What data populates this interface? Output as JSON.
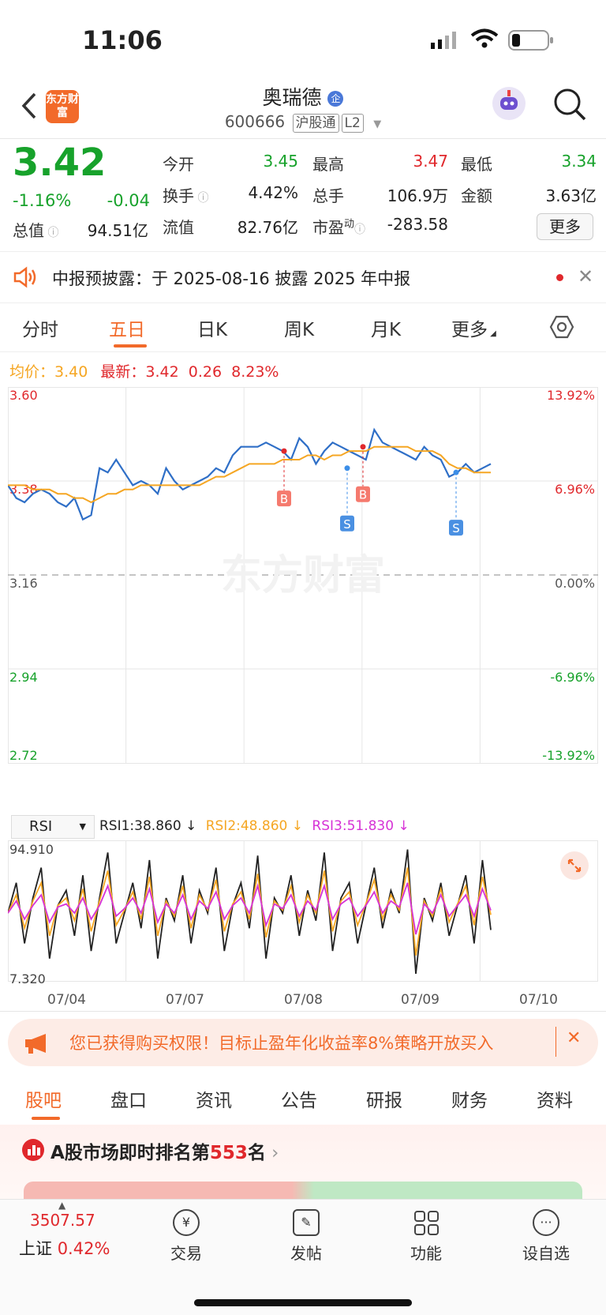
{
  "status_bar": {
    "time": "11:06"
  },
  "nav": {
    "logo_text": "东方财富",
    "stock_name": "奥瑞德",
    "badge": "企",
    "stock_code": "600666",
    "tag1": "沪股通",
    "tag2": "L2"
  },
  "quote": {
    "price": "3.42",
    "change_pct": "-1.16%",
    "change": "-0.04",
    "open_label": "今开",
    "open": "3.45",
    "high_label": "最高",
    "high": "3.47",
    "low_label": "最低",
    "low": "3.34",
    "turnover_label": "换手",
    "turnover": "4.42%",
    "volume_label": "总手",
    "volume": "106.9万",
    "amount_label": "金额",
    "amount": "3.63亿",
    "mktcap_label": "总值",
    "mktcap": "94.51亿",
    "float_label": "流值",
    "float": "82.76亿",
    "pe_label": "市盈",
    "pe_sup": "动",
    "pe": "-283.58",
    "more_button": "更多"
  },
  "banner": {
    "text": "中报预披露：于 2025-08-16 披露 2025 年中报"
  },
  "tabs": [
    "分时",
    "五日",
    "日K",
    "周K",
    "月K",
    "更多"
  ],
  "chart_header": {
    "avg_label": "均价：",
    "avg": "3.40",
    "latest_label": "最新：",
    "latest": "3.42",
    "chg": "0.26",
    "chg_pct": "8.23%"
  },
  "chart_data": {
    "type": "line",
    "y_left_labels": [
      "3.60",
      "3.38",
      "3.16",
      "2.94",
      "2.72"
    ],
    "y_right_labels": [
      "13.92%",
      "6.96%",
      "0.00%",
      "-6.96%",
      "-13.92%"
    ],
    "ylim": [
      2.72,
      3.6
    ],
    "baseline": 3.16,
    "x_labels": [
      "07/04",
      "07/07",
      "07/08",
      "07/09",
      "07/10"
    ],
    "series": [
      {
        "name": "最新",
        "color": "#2f6fc7",
        "values": [
          3.37,
          3.34,
          3.33,
          3.35,
          3.36,
          3.35,
          3.33,
          3.32,
          3.34,
          3.29,
          3.3,
          3.41,
          3.4,
          3.43,
          3.4,
          3.37,
          3.38,
          3.37,
          3.35,
          3.41,
          3.38,
          3.36,
          3.37,
          3.38,
          3.39,
          3.41,
          3.4,
          3.44,
          3.46,
          3.46,
          3.46,
          3.47,
          3.46,
          3.45,
          3.43,
          3.48,
          3.46,
          3.42,
          3.45,
          3.47,
          3.46,
          3.45,
          3.44,
          3.43,
          3.5,
          3.47,
          3.46,
          3.45,
          3.44,
          3.43,
          3.46,
          3.44,
          3.43,
          3.39,
          3.4,
          3.42,
          3.4,
          3.41,
          3.42
        ]
      },
      {
        "name": "均价",
        "color": "#f5a623",
        "values": [
          3.37,
          3.37,
          3.37,
          3.36,
          3.36,
          3.36,
          3.35,
          3.35,
          3.34,
          3.34,
          3.33,
          3.34,
          3.35,
          3.35,
          3.36,
          3.36,
          3.37,
          3.37,
          3.37,
          3.37,
          3.37,
          3.37,
          3.37,
          3.37,
          3.38,
          3.39,
          3.39,
          3.4,
          3.41,
          3.42,
          3.42,
          3.42,
          3.42,
          3.43,
          3.43,
          3.43,
          3.44,
          3.44,
          3.43,
          3.44,
          3.44,
          3.45,
          3.45,
          3.45,
          3.46,
          3.46,
          3.46,
          3.46,
          3.46,
          3.45,
          3.45,
          3.45,
          3.44,
          3.42,
          3.41,
          3.41,
          3.4,
          3.4,
          3.4
        ]
      }
    ],
    "markers": [
      {
        "label": "B",
        "value": 3.45
      },
      {
        "label": "S",
        "value": 3.41
      },
      {
        "label": "B",
        "value": 3.46
      },
      {
        "label": "S",
        "value": 3.4
      }
    ]
  },
  "rsi": {
    "selector": "RSI",
    "rsi1": "RSI1:38.860 ↓",
    "rsi2": "RSI2:48.860 ↓",
    "rsi3": "RSI3:51.830 ↓",
    "max": "94.910",
    "min": "7.320",
    "chart_data": {
      "type": "line",
      "ylim": [
        7.32,
        94.91
      ],
      "series": [
        {
          "name": "RSI1",
          "color": "#222222",
          "values": [
            50,
            70,
            30,
            60,
            80,
            20,
            55,
            65,
            35,
            75,
            25,
            60,
            90,
            30,
            50,
            70,
            40,
            85,
            20,
            60,
            45,
            75,
            30,
            65,
            50,
            80,
            25,
            55,
            70,
            40,
            88,
            20,
            60,
            50,
            75,
            35,
            65,
            45,
            90,
            25,
            60,
            70,
            30,
            55,
            80,
            40,
            65,
            50,
            92,
            10,
            60,
            45,
            70,
            35,
            55,
            75,
            30,
            85,
            38.86
          ]
        },
        {
          "name": "RSI2",
          "color": "#f5a623",
          "values": [
            50,
            62,
            40,
            58,
            70,
            35,
            55,
            60,
            45,
            66,
            38,
            58,
            78,
            42,
            52,
            64,
            46,
            74,
            35,
            58,
            48,
            68,
            40,
            62,
            52,
            72,
            38,
            56,
            64,
            46,
            76,
            34,
            58,
            52,
            68,
            44,
            62,
            50,
            78,
            38,
            58,
            64,
            42,
            56,
            72,
            46,
            62,
            52,
            80,
            22,
            58,
            48,
            66,
            44,
            56,
            68,
            42,
            74,
            48.86
          ]
        },
        {
          "name": "RSI3",
          "color": "#d633d6",
          "values": [
            50,
            58,
            46,
            55,
            62,
            44,
            54,
            56,
            50,
            60,
            46,
            55,
            68,
            48,
            53,
            60,
            50,
            66,
            44,
            56,
            50,
            62,
            46,
            58,
            53,
            64,
            46,
            55,
            60,
            50,
            68,
            42,
            56,
            53,
            62,
            48,
            58,
            52,
            68,
            46,
            56,
            60,
            48,
            55,
            64,
            50,
            58,
            54,
            70,
            36,
            56,
            50,
            62,
            48,
            55,
            62,
            48,
            66,
            51.83
          ]
        }
      ]
    }
  },
  "promo": {
    "text": "您已获得购买权限！目标止盈年化收益率8%策略开放买入"
  },
  "section_tabs": [
    "股吧",
    "盘口",
    "资讯",
    "公告",
    "研报",
    "财务",
    "资料"
  ],
  "ranking": {
    "prefix": "A股市场即时排名第",
    "rank": "553",
    "suffix": "名"
  },
  "bottom_bar": {
    "index_value": "3507.57",
    "index_name": "上证",
    "index_change": "0.42%",
    "items": [
      "交易",
      "发帖",
      "功能",
      "设自选"
    ]
  }
}
